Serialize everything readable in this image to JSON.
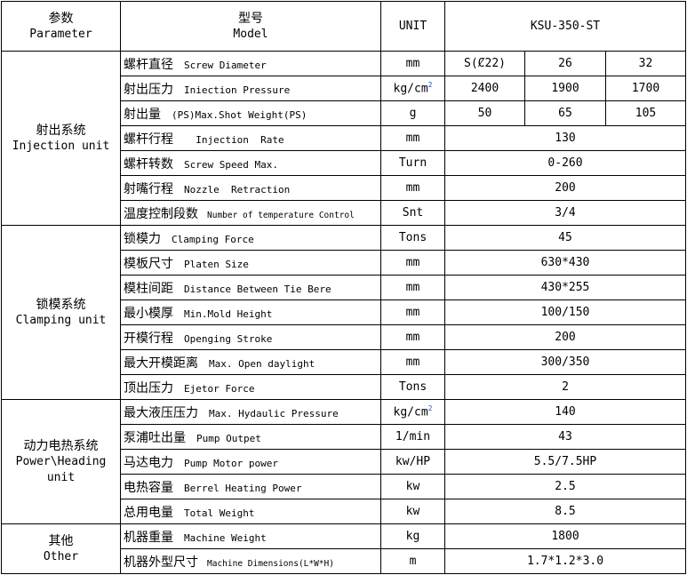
{
  "header": {
    "parameter_cn": "参数",
    "parameter_en": "Parameter",
    "model_cn": "型号",
    "model_en": "Model",
    "unit": "UNIT",
    "model_name": "KSU-350-ST"
  },
  "groups": [
    {
      "cn": "射出系统",
      "en": "Injection unit",
      "rows": [
        {
          "cn": "螺杆直径",
          "en": "Screw Diameter",
          "unit": "mm",
          "values": [
            "S(Ȼ22)",
            "26",
            "32"
          ]
        },
        {
          "cn": "射出压力",
          "en": "Iniection Pressure",
          "unit": "kg/cm",
          "unit_sup": "2",
          "values": [
            "2400",
            "1900",
            "1700"
          ]
        },
        {
          "cn": "射出量",
          "en": "(PS)Max.Shot Weight(PS)",
          "unit": "g",
          "values": [
            "50",
            "65",
            "105"
          ]
        },
        {
          "cn": "螺杆行程",
          "en": "  Injection  Rate",
          "unit": "mm",
          "values": [
            "130"
          ]
        },
        {
          "cn": "螺杆转数",
          "en": "Screw Speed Max.",
          "unit": "Turn",
          "values": [
            "0-260"
          ]
        },
        {
          "cn": "射嘴行程",
          "en": "Nozzle  Retraction",
          "unit": "mm",
          "values": [
            "200"
          ]
        },
        {
          "cn": "温度控制段数",
          "en": "Number of temperature Control",
          "unit": "Snt",
          "values": [
            "3/4"
          ],
          "small": true
        }
      ]
    },
    {
      "cn": "锁模系统",
      "en": "Clamping unit",
      "rows": [
        {
          "cn": "锁模力",
          "en": "Clamping Force",
          "unit": "Tons",
          "values": [
            "45"
          ]
        },
        {
          "cn": "模板尺寸",
          "en": "Platen Size",
          "unit": "mm",
          "values": [
            "630*430"
          ]
        },
        {
          "cn": "模柱间距",
          "en": "Distance Between Tie Bere",
          "unit": "mm",
          "values": [
            "430*255"
          ]
        },
        {
          "cn": "最小模厚",
          "en": "Min.Mold Height",
          "unit": "mm",
          "values": [
            "100/150"
          ]
        },
        {
          "cn": "开模行程",
          "en": "Openging Stroke",
          "unit": "mm",
          "values": [
            "200"
          ]
        },
        {
          "cn": "最大开模距离",
          "en": "Max. Open daylight",
          "unit": "mm",
          "values": [
            "300/350"
          ]
        },
        {
          "cn": "顶出压力",
          "en": "Ejetor Force",
          "unit": "Tons",
          "values": [
            "2"
          ]
        }
      ]
    },
    {
      "cn": "动力电热系统",
      "en": "Power\\Heading unit",
      "rows": [
        {
          "cn": "最大液压压力",
          "en": "Max. Hydaulic Pressure",
          "unit": "kg/cm",
          "unit_sup": "2",
          "values": [
            "140"
          ]
        },
        {
          "cn": "泵浦吐出量",
          "en": "Pump Outpet",
          "unit": "1/min",
          "values": [
            "43"
          ]
        },
        {
          "cn": "马达电力",
          "en": "Pump Motor power",
          "unit": "kw/HP",
          "values": [
            "5.5/7.5HP"
          ]
        },
        {
          "cn": "电热容量",
          "en": "Berrel Heating Power",
          "unit": "kw",
          "values": [
            "2.5"
          ]
        },
        {
          "cn": "总用电量",
          "en": "Total Weight",
          "unit": "kw",
          "values": [
            "8.5"
          ]
        }
      ]
    },
    {
      "cn": "其他",
      "en": "Other",
      "rows": [
        {
          "cn": "机器重量",
          "en": "Machine Weight",
          "unit": "kg",
          "values": [
            "1800"
          ]
        },
        {
          "cn": "机器外型尺寸",
          "en": "Machine Dimensions(L*W*H)",
          "unit": "m",
          "values": [
            "1.7*1.2*3.0"
          ],
          "small": true
        }
      ]
    }
  ]
}
